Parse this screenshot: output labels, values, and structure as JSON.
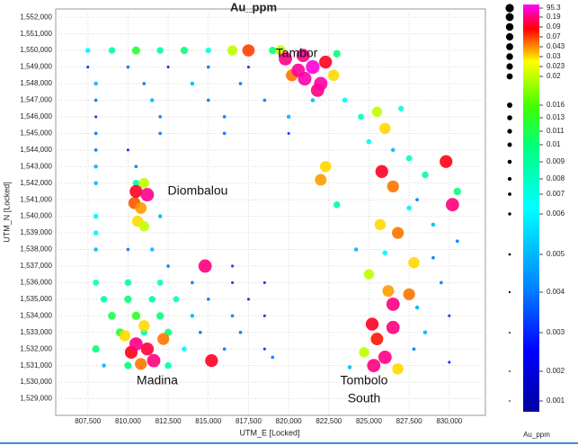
{
  "chart_data": {
    "type": "scatter",
    "title": "Au_ppm",
    "x_label": "UTM_E [Locked]",
    "y_label": "UTM_N [Locked]",
    "xlim": [
      805500,
      832250
    ],
    "ylim": [
      1528000,
      1552500
    ],
    "xticks": [
      {
        "value": 807500,
        "label": "807,500"
      },
      {
        "value": 810000,
        "label": "810,000"
      },
      {
        "value": 812500,
        "label": "812,500"
      },
      {
        "value": 815000,
        "label": "815,000"
      },
      {
        "value": 817500,
        "label": "817,500"
      },
      {
        "value": 820000,
        "label": "820,000"
      },
      {
        "value": 822500,
        "label": "822,500"
      },
      {
        "value": 825000,
        "label": "825,000"
      },
      {
        "value": 827500,
        "label": "827,500"
      },
      {
        "value": 830000,
        "label": "830,000"
      }
    ],
    "yticks": [
      {
        "value": 1529000,
        "label": "1,529,000"
      },
      {
        "value": 1530000,
        "label": "1,530,000"
      },
      {
        "value": 1531000,
        "label": "1,531,000"
      },
      {
        "value": 1532000,
        "label": "1,532,000"
      },
      {
        "value": 1533000,
        "label": "1,533,000"
      },
      {
        "value": 1534000,
        "label": "1,534,000"
      },
      {
        "value": 1535000,
        "label": "1,535,000"
      },
      {
        "value": 1536000,
        "label": "1,536,000"
      },
      {
        "value": 1537000,
        "label": "1,537,000"
      },
      {
        "value": 1538000,
        "label": "1,538,000"
      },
      {
        "value": 1539000,
        "label": "1,539,000"
      },
      {
        "value": 1540000,
        "label": "1,540,000"
      },
      {
        "value": 1541000,
        "label": "1,541,000"
      },
      {
        "value": 1542000,
        "label": "1,542,000"
      },
      {
        "value": 1543000,
        "label": "1,543,000"
      },
      {
        "value": 1544000,
        "label": "1,544,000"
      },
      {
        "value": 1545000,
        "label": "1,545,000"
      },
      {
        "value": 1546000,
        "label": "1,546,000"
      },
      {
        "value": 1547000,
        "label": "1,547,000"
      },
      {
        "value": 1548000,
        "label": "1,548,000"
      },
      {
        "value": 1549000,
        "label": "1,549,000"
      },
      {
        "value": 1550000,
        "label": "1,550,000"
      },
      {
        "value": 1551000,
        "label": "1,551,000"
      },
      {
        "value": 1552000,
        "label": "1,552,000"
      }
    ],
    "grid": true,
    "x": [
      807500,
      809000,
      810500,
      812000,
      813500,
      815000,
      816500,
      817500,
      819000,
      807500,
      810000,
      812500,
      815000,
      817500,
      808000,
      811000,
      814000,
      817000,
      808000,
      811500,
      815000,
      818500,
      821500,
      808000,
      812000,
      816000,
      820000,
      808000,
      812000,
      816000,
      820000,
      808000,
      810000,
      808000,
      810500,
      808000,
      810500,
      811000,
      810400,
      810800,
      810600,
      811000,
      810500,
      811200,
      808000,
      812000,
      808000,
      808000,
      810000,
      811500,
      812500,
      816500,
      814800,
      808000,
      810000,
      812000,
      814000,
      816500,
      818500,
      808500,
      810000,
      811500,
      813000,
      815000,
      817500,
      809000,
      810500,
      812000,
      814000,
      816500,
      818500,
      809500,
      811000,
      812500,
      814500,
      817000,
      808000,
      813500,
      816000,
      818500,
      819000,
      808500,
      810000,
      812500,
      809800,
      811000,
      812200,
      810800,
      810200,
      811200,
      811600,
      810500,
      815200,
      819500,
      823000,
      822800,
      820200,
      822300,
      819800,
      820900,
      821800,
      820600,
      822000,
      821000,
      821500,
      823500,
      824500,
      825500,
      826000,
      825000,
      826500,
      827500,
      829800,
      828500,
      830500,
      830200,
      825800,
      826500,
      827500,
      829000,
      825700,
      826800,
      830500,
      824200,
      826000,
      827800,
      825000,
      826200,
      827500,
      829500,
      826500,
      828000,
      830000,
      825200,
      826500,
      825500,
      827800,
      824700,
      826000,
      825300,
      826800,
      830000,
      823800,
      822000,
      822300,
      823000,
      828000,
      829000,
      828500,
      827000
    ],
    "y": [
      1550000,
      1550000,
      1550000,
      1550000,
      1550000,
      1550000,
      1550000,
      1550000,
      1550000,
      1549000,
      1549000,
      1549000,
      1549000,
      1549000,
      1548000,
      1548000,
      1548000,
      1548000,
      1547000,
      1547000,
      1547000,
      1547000,
      1547000,
      1546000,
      1546000,
      1546000,
      1546000,
      1545000,
      1545000,
      1545000,
      1545000,
      1544000,
      1544000,
      1543000,
      1543000,
      1542000,
      1542000,
      1542000,
      1540800,
      1540500,
      1539700,
      1539400,
      1541500,
      1541300,
      1540000,
      1540000,
      1539000,
      1538000,
      1538000,
      1538000,
      1537000,
      1537000,
      1537000,
      1536000,
      1536000,
      1536000,
      1536000,
      1536000,
      1536000,
      1535000,
      1535000,
      1535000,
      1535000,
      1535000,
      1535000,
      1534000,
      1534000,
      1534000,
      1534000,
      1534000,
      1534000,
      1533000,
      1533000,
      1533000,
      1533000,
      1533000,
      1532000,
      1532000,
      1532000,
      1532000,
      1531500,
      1531000,
      1531000,
      1531000,
      1532800,
      1533400,
      1532600,
      1531100,
      1531800,
      1532000,
      1531300,
      1532300,
      1531300,
      1550000,
      1549800,
      1548500,
      1548500,
      1549300,
      1549500,
      1549700,
      1547600,
      1548800,
      1548000,
      1548300,
      1549000,
      1547000,
      1546000,
      1546300,
      1545300,
      1544500,
      1544000,
      1543500,
      1543300,
      1542500,
      1541500,
      1540700,
      1542700,
      1541800,
      1540500,
      1539500,
      1539500,
      1539000,
      1538500,
      1538000,
      1537800,
      1537200,
      1536500,
      1535500,
      1535300,
      1536000,
      1534700,
      1534500,
      1534000,
      1533500,
      1533300,
      1532600,
      1532000,
      1531800,
      1531500,
      1531000,
      1530800,
      1531200,
      1530900,
      1542200,
      1543000,
      1540700,
      1541000,
      1537500,
      1533000,
      1546500
    ],
    "values": [
      0.006,
      0.009,
      0.012,
      0.009,
      0.01,
      0.007,
      0.02,
      0.07,
      0.01,
      0.003,
      0.004,
      0.003,
      0.004,
      0.003,
      0.005,
      0.004,
      0.005,
      0.004,
      0.004,
      0.005,
      0.004,
      0.004,
      0.005,
      0.003,
      0.004,
      0.004,
      0.005,
      0.004,
      0.004,
      0.004,
      0.003,
      0.004,
      0.003,
      0.005,
      0.004,
      0.005,
      0.009,
      0.02,
      0.06,
      0.04,
      0.03,
      0.02,
      0.1,
      0.5,
      0.006,
      0.005,
      0.006,
      0.005,
      0.004,
      0.005,
      0.004,
      0.003,
      0.2,
      0.008,
      0.009,
      0.008,
      0.004,
      0.003,
      0.003,
      0.009,
      0.01,
      0.009,
      0.008,
      0.004,
      0.003,
      0.011,
      0.013,
      0.01,
      0.005,
      0.004,
      0.003,
      0.012,
      0.009,
      0.01,
      0.004,
      0.004,
      0.01,
      0.006,
      0.004,
      0.003,
      0.004,
      0.005,
      0.01,
      0.009,
      0.03,
      0.03,
      0.05,
      0.05,
      0.09,
      0.12,
      0.2,
      0.3,
      0.1,
      0.02,
      0.01,
      0.03,
      0.05,
      0.1,
      0.3,
      0.5,
      0.2,
      1,
      3,
      5,
      95.3,
      0.006,
      0.008,
      0.02,
      0.03,
      0.006,
      0.005,
      0.008,
      0.09,
      0.009,
      0.01,
      0.2,
      0.1,
      0.05,
      0.006,
      0.005,
      0.03,
      0.05,
      0.004,
      0.005,
      0.006,
      0.03,
      0.02,
      0.04,
      0.05,
      0.004,
      0.3,
      0.005,
      0.003,
      0.1,
      0.2,
      0.08,
      0.004,
      0.02,
      0.5,
      0.2,
      0.03,
      0.003,
      0.005,
      0.04,
      0.03,
      0.009,
      0.004,
      0.004,
      0.005,
      0.007
    ],
    "annotations": [
      "Tambor",
      "Diombalou",
      "Madina",
      "Tombolo",
      "South"
    ],
    "colorbar": {
      "label": "Au_ppm",
      "ticks": [
        95.3,
        0.19,
        0.09,
        0.07,
        0.043,
        0.03,
        0.023,
        0.02,
        0.016,
        0.013,
        0.011,
        0.01,
        0.009,
        0.008,
        0.007,
        0.006,
        0.005,
        0.004,
        0.003,
        0.002,
        0.001
      ]
    }
  }
}
